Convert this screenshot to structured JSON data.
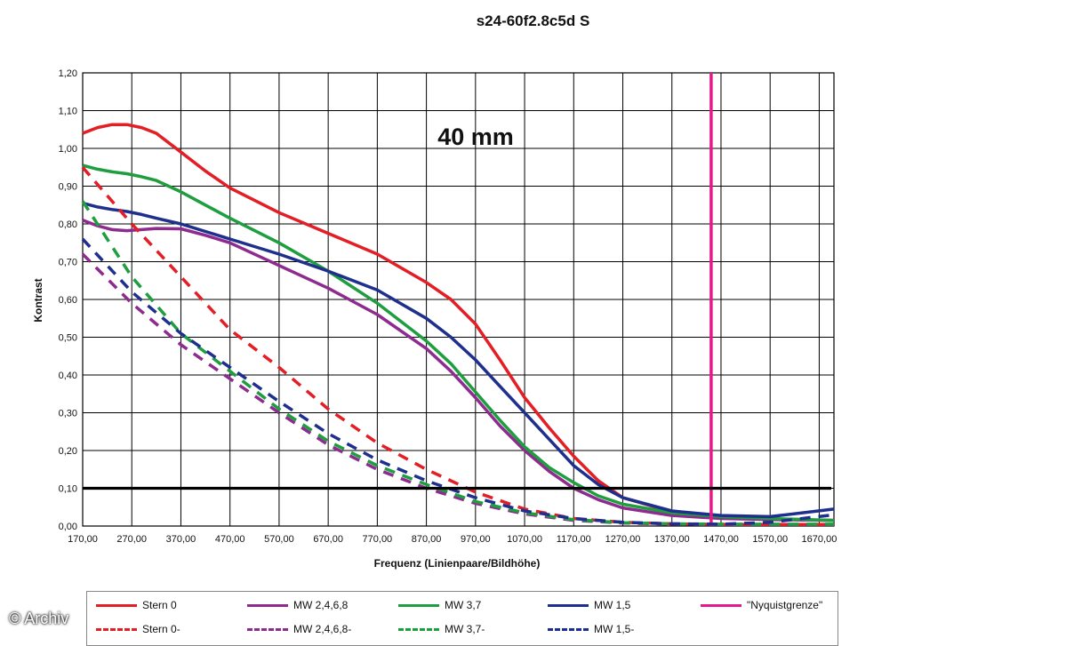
{
  "chart_data": {
    "type": "line",
    "title": "s24-60f2.8c5d S",
    "annotation": "40 mm",
    "xlabel": "Frequenz (Linienpaare/Bildhöhe)",
    "ylabel": "Kontrast",
    "xlim": [
      170,
      1700
    ],
    "ylim": [
      0,
      1.2
    ],
    "x_ticks": [
      "170,00",
      "270,00",
      "370,00",
      "470,00",
      "570,00",
      "670,00",
      "770,00",
      "870,00",
      "970,00",
      "1070,00",
      "1170,00",
      "1270,00",
      "1370,00",
      "1470,00",
      "1570,00",
      "1670,00"
    ],
    "y_ticks": [
      "0,00",
      "0,10",
      "0,20",
      "0,30",
      "0,40",
      "0,50",
      "0,60",
      "0,70",
      "0,80",
      "0,90",
      "1,00",
      "1,10",
      "1,20"
    ],
    "grid": true,
    "reference_line": {
      "y": 0.1,
      "color": "#000000"
    },
    "series": [
      {
        "name": "Stern 0",
        "color": "#e31e24",
        "dash": false,
        "x": [
          170,
          200,
          230,
          260,
          290,
          320,
          370,
          420,
          470,
          570,
          670,
          770,
          870,
          920,
          970,
          1020,
          1070,
          1120,
          1170,
          1220,
          1270,
          1370,
          1470,
          1570,
          1700
        ],
        "y": [
          1.04,
          1.055,
          1.063,
          1.063,
          1.055,
          1.04,
          0.99,
          0.94,
          0.895,
          0.83,
          0.775,
          0.72,
          0.645,
          0.6,
          0.535,
          0.44,
          0.34,
          0.26,
          0.185,
          0.12,
          0.075,
          0.038,
          0.022,
          0.018,
          0.015
        ]
      },
      {
        "name": "MW 2,4,6,8",
        "color": "#8e2b8e",
        "dash": false,
        "x": [
          170,
          200,
          230,
          260,
          290,
          320,
          370,
          420,
          470,
          570,
          670,
          770,
          870,
          920,
          970,
          1020,
          1070,
          1120,
          1170,
          1220,
          1270,
          1370,
          1470,
          1570,
          1700
        ],
        "y": [
          0.81,
          0.795,
          0.785,
          0.782,
          0.785,
          0.788,
          0.787,
          0.77,
          0.75,
          0.69,
          0.63,
          0.56,
          0.47,
          0.41,
          0.34,
          0.265,
          0.2,
          0.145,
          0.1,
          0.07,
          0.048,
          0.028,
          0.02,
          0.017,
          0.015
        ]
      },
      {
        "name": "MW 3,7",
        "color": "#1e9e3e",
        "dash": false,
        "x": [
          170,
          200,
          230,
          260,
          290,
          320,
          370,
          420,
          470,
          570,
          670,
          770,
          870,
          920,
          970,
          1020,
          1070,
          1120,
          1170,
          1220,
          1270,
          1370,
          1470,
          1570,
          1700
        ],
        "y": [
          0.955,
          0.945,
          0.938,
          0.933,
          0.925,
          0.915,
          0.885,
          0.85,
          0.815,
          0.75,
          0.675,
          0.59,
          0.49,
          0.43,
          0.355,
          0.28,
          0.21,
          0.155,
          0.115,
          0.08,
          0.058,
          0.035,
          0.025,
          0.02,
          0.015
        ]
      },
      {
        "name": "MW 1,5",
        "color": "#1f2f8e",
        "dash": false,
        "x": [
          170,
          200,
          230,
          260,
          290,
          320,
          370,
          420,
          470,
          570,
          670,
          770,
          870,
          920,
          970,
          1020,
          1070,
          1120,
          1170,
          1220,
          1270,
          1370,
          1470,
          1570,
          1700
        ],
        "y": [
          0.855,
          0.845,
          0.838,
          0.833,
          0.825,
          0.815,
          0.8,
          0.78,
          0.76,
          0.72,
          0.675,
          0.625,
          0.55,
          0.5,
          0.44,
          0.37,
          0.3,
          0.23,
          0.16,
          0.11,
          0.075,
          0.04,
          0.028,
          0.025,
          0.045
        ]
      },
      {
        "name": "\"Nyquistgrenze\"",
        "color": "#e6198c",
        "dash": false,
        "x": [
          1450,
          1450
        ],
        "y": [
          0,
          1.2
        ]
      },
      {
        "name": "Stern 0-",
        "color": "#e31e24",
        "dash": true,
        "x": [
          170,
          270,
          370,
          470,
          570,
          670,
          770,
          870,
          970,
          1070,
          1170,
          1270,
          1370,
          1470,
          1570,
          1700
        ],
        "y": [
          0.95,
          0.8,
          0.66,
          0.52,
          0.42,
          0.31,
          0.22,
          0.15,
          0.09,
          0.045,
          0.02,
          0.01,
          0.006,
          0.004,
          0.004,
          0.004
        ]
      },
      {
        "name": "MW 2,4,6,8-",
        "color": "#8e2b8e",
        "dash": true,
        "x": [
          170,
          270,
          370,
          470,
          570,
          670,
          770,
          870,
          970,
          1070,
          1170,
          1270,
          1370,
          1470,
          1570,
          1700
        ],
        "y": [
          0.72,
          0.59,
          0.48,
          0.39,
          0.3,
          0.215,
          0.15,
          0.1,
          0.06,
          0.032,
          0.015,
          0.008,
          0.005,
          0.004,
          0.004,
          0.004
        ]
      },
      {
        "name": "MW 3,7-",
        "color": "#1e9e3e",
        "dash": true,
        "x": [
          170,
          270,
          370,
          470,
          570,
          670,
          770,
          870,
          970,
          1070,
          1170,
          1270,
          1370,
          1470,
          1570,
          1700
        ],
        "y": [
          0.86,
          0.66,
          0.51,
          0.41,
          0.31,
          0.225,
          0.16,
          0.11,
          0.065,
          0.035,
          0.017,
          0.009,
          0.006,
          0.005,
          0.005,
          0.005
        ]
      },
      {
        "name": "MW 1,5-",
        "color": "#1f2f8e",
        "dash": true,
        "x": [
          170,
          270,
          370,
          470,
          570,
          670,
          770,
          870,
          970,
          1070,
          1170,
          1270,
          1370,
          1470,
          1570,
          1700
        ],
        "y": [
          0.76,
          0.62,
          0.51,
          0.42,
          0.33,
          0.245,
          0.175,
          0.12,
          0.075,
          0.04,
          0.02,
          0.01,
          0.006,
          0.005,
          0.01,
          0.03
        ]
      }
    ]
  },
  "watermark": "© Archiv"
}
